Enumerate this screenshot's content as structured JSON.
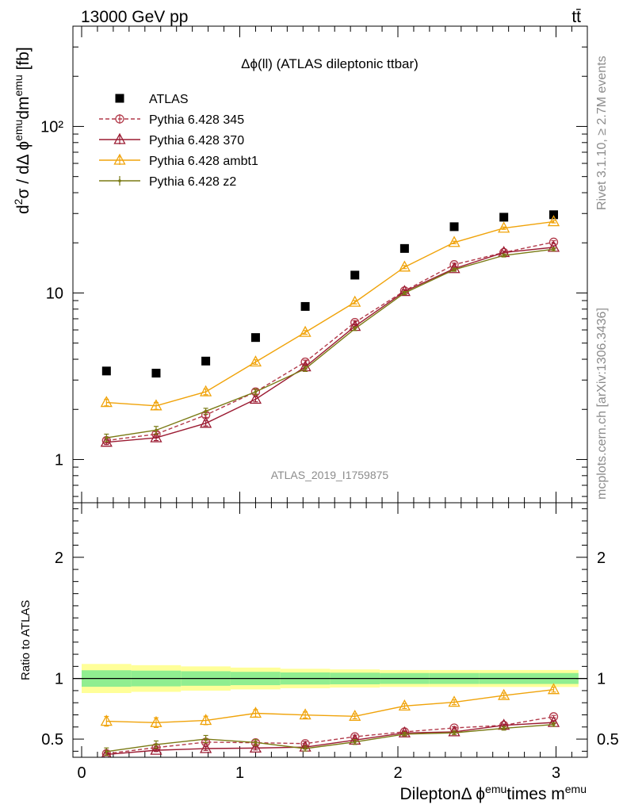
{
  "header": {
    "energy_label": "13000 GeV pp",
    "process_label": "tt̄"
  },
  "side_labels": {
    "rivet": "Rivet 3.1.10, ≥ 2.7M events",
    "mcplots": "mcplots.cern.ch [arXiv:1306.3436]"
  },
  "chart_data": [
    {
      "type": "scatter",
      "title": "Δϕ(ll) (ATLAS dileptonic ttbar)",
      "watermark": "ATLAS_2019_I1759875",
      "ylabel": "d²σ / dΔ ϕ^emu dm^emu [fb]",
      "yscale": "log",
      "ylim": [
        0.55,
        400
      ],
      "xlim": [
        0,
        3.2
      ],
      "ytick_labels": [
        "1",
        "10",
        "10²"
      ],
      "x": [
        0.157,
        0.471,
        0.785,
        1.1,
        1.414,
        1.728,
        2.042,
        2.356,
        2.67,
        2.985
      ],
      "legend_position": "top-left",
      "series": [
        {
          "name": "ATLAS",
          "color": "#000000",
          "marker": "square",
          "line": "none",
          "values": [
            3.4,
            3.3,
            3.9,
            5.4,
            8.3,
            12.8,
            18.5,
            25,
            28.5,
            29.5
          ]
        },
        {
          "name": "Pythia 6.428 345",
          "color": "#b23a4a",
          "marker": "circle",
          "line": "dashed",
          "values": [
            1.3,
            1.42,
            1.85,
            2.55,
            3.85,
            6.65,
            10.3,
            14.8,
            17.5,
            20.2
          ],
          "errors": [
            0.04,
            0.05,
            0.06,
            0.08,
            0.1,
            0.15,
            0.2,
            0.3,
            0.35,
            0.4
          ]
        },
        {
          "name": "Pythia 6.428 370",
          "color": "#9b1b32",
          "marker": "triangle",
          "line": "solid",
          "values": [
            1.27,
            1.35,
            1.65,
            2.3,
            3.6,
            6.3,
            10.2,
            14.0,
            17.5,
            18.8
          ],
          "errors": [
            0.04,
            0.05,
            0.06,
            0.08,
            0.1,
            0.15,
            0.2,
            0.3,
            0.35,
            0.4
          ]
        },
        {
          "name": "Pythia 6.428 ambt1",
          "color": "#f0a30a",
          "marker": "triangle",
          "line": "solid",
          "values": [
            2.2,
            2.1,
            2.55,
            3.85,
            5.8,
            8.8,
            14.3,
            20.1,
            24.5,
            26.8
          ],
          "errors": [
            0.1,
            0.1,
            0.1,
            0.12,
            0.15,
            0.2,
            0.3,
            0.35,
            0.4,
            0.45
          ]
        },
        {
          "name": "Pythia 6.428 z2",
          "color": "#7a7a14",
          "marker": "dot",
          "line": "solid",
          "values": [
            1.35,
            1.5,
            1.95,
            2.55,
            3.5,
            6.1,
            10.0,
            13.8,
            16.8,
            18.3
          ],
          "errors": [
            0.07,
            0.08,
            0.08,
            0.1,
            0.12,
            0.15,
            0.2,
            0.3,
            0.35,
            0.4
          ]
        }
      ]
    },
    {
      "type": "scatter",
      "ylabel": "Ratio to ATLAS",
      "xlabel": "Dilepton Δ ϕ^emu times m^emu",
      "ylim": [
        0.35,
        2.45
      ],
      "xlim": [
        0,
        3.2
      ],
      "ytick_labels": [
        "0.5",
        "1",
        "2"
      ],
      "xtick_labels": [
        "0",
        "1",
        "2",
        "3"
      ],
      "x": [
        0.157,
        0.471,
        0.785,
        1.1,
        1.414,
        1.728,
        2.042,
        2.356,
        2.67,
        2.985
      ],
      "band_edges": [
        0,
        0.314,
        0.628,
        0.942,
        1.257,
        1.571,
        1.885,
        2.199,
        2.513,
        2.827,
        3.142
      ],
      "band_inner": [
        0.068,
        0.065,
        0.06,
        0.055,
        0.05,
        0.048,
        0.045,
        0.045,
        0.045,
        0.045
      ],
      "band_outer": [
        0.12,
        0.11,
        0.1,
        0.09,
        0.08,
        0.075,
        0.07,
        0.07,
        0.07,
        0.07
      ],
      "band_colors": {
        "inner": "#90ee90",
        "outer": "#ffff99"
      },
      "series": [
        {
          "name": "Pythia 6.428 345",
          "color": "#b23a4a",
          "marker": "circle",
          "line": "dashed",
          "values": [
            0.38,
            0.43,
            0.475,
            0.47,
            0.463,
            0.52,
            0.56,
            0.592,
            0.614,
            0.685
          ],
          "errors": [
            0.01,
            0.01,
            0.015,
            0.015,
            0.015,
            0.012,
            0.01,
            0.01,
            0.01,
            0.01
          ]
        },
        {
          "name": "Pythia 6.428 370",
          "color": "#9b1b32",
          "marker": "triangle",
          "line": "solid",
          "values": [
            0.373,
            0.408,
            0.422,
            0.426,
            0.434,
            0.492,
            0.551,
            0.56,
            0.614,
            0.637
          ],
          "errors": [
            0.01,
            0.01,
            0.015,
            0.015,
            0.015,
            0.012,
            0.01,
            0.01,
            0.01,
            0.01
          ]
        },
        {
          "name": "Pythia 6.428 ambt1",
          "color": "#f0a30a",
          "marker": "triangle",
          "line": "solid",
          "values": [
            0.647,
            0.636,
            0.654,
            0.713,
            0.699,
            0.688,
            0.773,
            0.804,
            0.86,
            0.908
          ],
          "errors": [
            0.04,
            0.04,
            0.035,
            0.03,
            0.025,
            0.02,
            0.02,
            0.02,
            0.02,
            0.02
          ]
        },
        {
          "name": "Pythia 6.428 z2",
          "color": "#7a7a14",
          "marker": "dot",
          "line": "solid",
          "values": [
            0.397,
            0.455,
            0.5,
            0.472,
            0.422,
            0.476,
            0.541,
            0.552,
            0.589,
            0.62
          ],
          "errors": [
            0.03,
            0.03,
            0.03,
            0.025,
            0.02,
            0.02,
            0.015,
            0.015,
            0.015,
            0.015
          ]
        }
      ]
    }
  ]
}
